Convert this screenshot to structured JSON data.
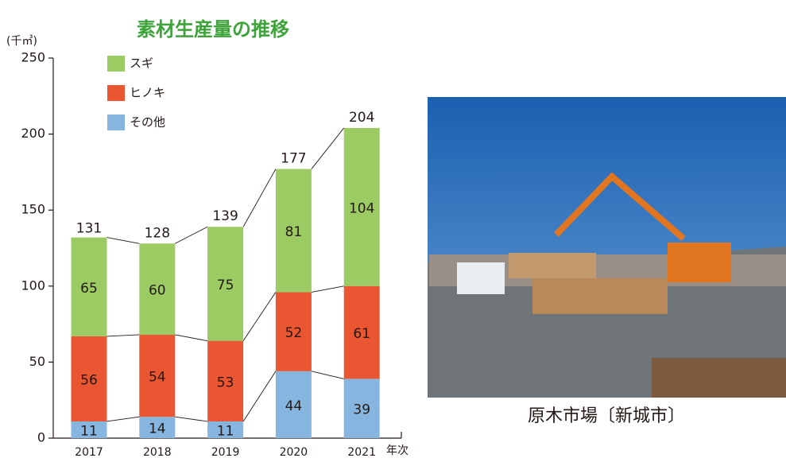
{
  "chart_data": {
    "type": "stacked_bar",
    "title": "素材生産量の推移",
    "y_label": "(千㎥)",
    "x_label": "年次",
    "categories": [
      "2017",
      "2018",
      "2019",
      "2020",
      "2021"
    ],
    "series": [
      {
        "name": "その他",
        "color": "#86b6df",
        "values": [
          11,
          14,
          11,
          44,
          39
        ]
      },
      {
        "name": "ヒノキ",
        "color": "#ea5532",
        "values": [
          56,
          54,
          53,
          52,
          61
        ]
      },
      {
        "name": "スギ",
        "color": "#9ccb64",
        "values": [
          65,
          60,
          75,
          81,
          104
        ]
      }
    ],
    "totals": [
      131,
      128,
      139,
      177,
      204
    ],
    "ylim": [
      0,
      250
    ],
    "yticks": [
      0,
      50,
      100,
      150,
      200,
      250
    ],
    "grid": false
  },
  "photo": {
    "caption": "原木市場〔新城市〕"
  }
}
